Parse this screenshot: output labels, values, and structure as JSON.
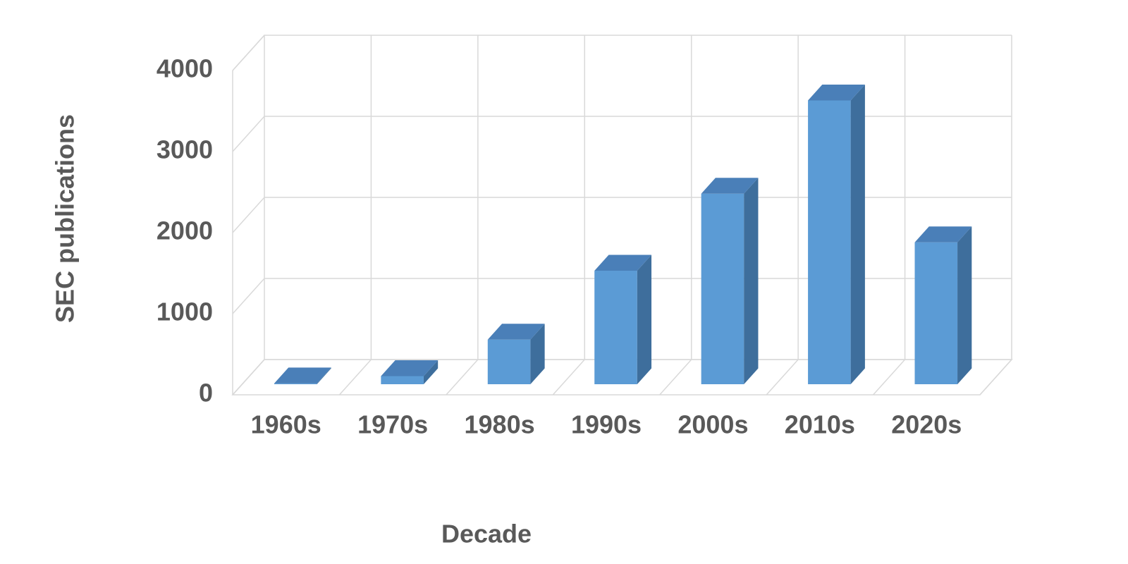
{
  "chart_data": {
    "type": "bar3d",
    "x_label": "Decade",
    "y_label": "SEC  publications",
    "categories": [
      "1960s",
      "1970s",
      "1980s",
      "1990s",
      "2000s",
      "2010s",
      "2020s"
    ],
    "values": [
      10,
      100,
      550,
      1400,
      2350,
      3500,
      1750
    ],
    "color": "#5b9bd5",
    "ylim": [
      0,
      4000
    ],
    "yticks": [
      0,
      1000,
      2000,
      3000,
      4000
    ],
    "grid": true
  }
}
